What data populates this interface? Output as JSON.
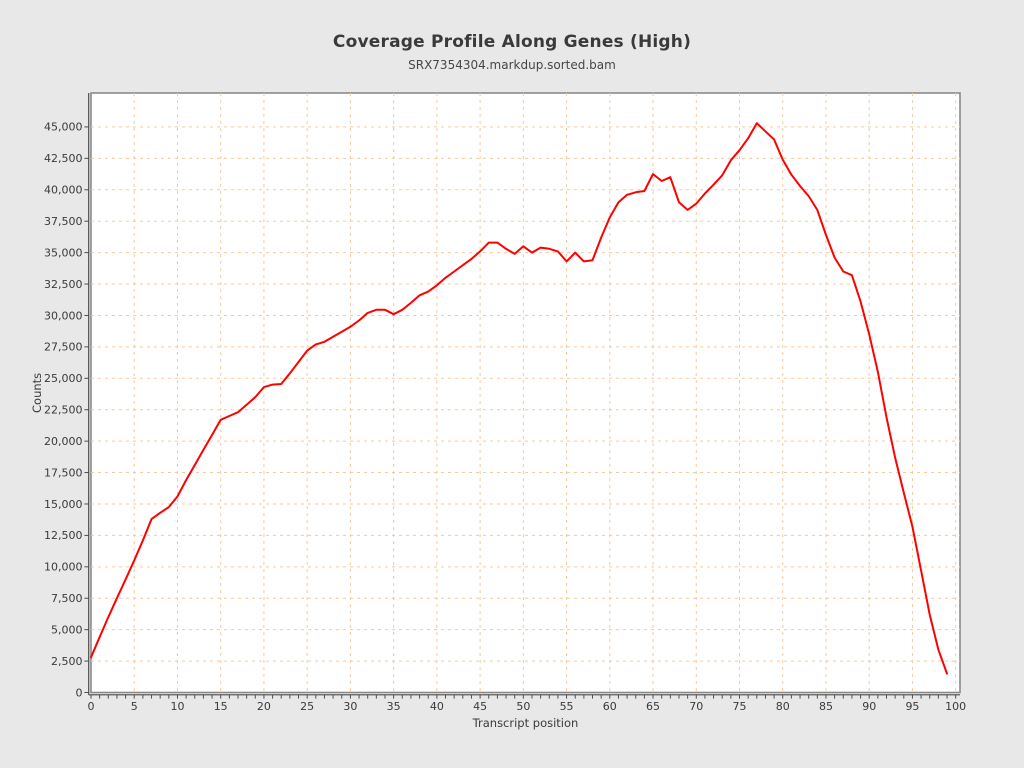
{
  "chart_data": {
    "type": "line",
    "title": "Coverage Profile Along Genes (High)",
    "subtitle": "SRX7354304.markdup.sorted.bam",
    "xlabel": "Transcript position",
    "ylabel": "Counts",
    "x": [
      0,
      1,
      2,
      3,
      4,
      5,
      6,
      7,
      8,
      9,
      10,
      11,
      12,
      13,
      14,
      15,
      16,
      17,
      18,
      19,
      20,
      21,
      22,
      23,
      24,
      25,
      26,
      27,
      28,
      29,
      30,
      31,
      32,
      33,
      34,
      35,
      36,
      37,
      38,
      39,
      40,
      41,
      42,
      43,
      44,
      45,
      46,
      47,
      48,
      49,
      50,
      51,
      52,
      53,
      54,
      55,
      56,
      57,
      58,
      59,
      60,
      61,
      62,
      63,
      64,
      65,
      66,
      67,
      68,
      69,
      70,
      71,
      72,
      73,
      74,
      75,
      76,
      77,
      78,
      79,
      80,
      81,
      82,
      83,
      84,
      85,
      86,
      87,
      88,
      89,
      90,
      91,
      92,
      93,
      94,
      95,
      96,
      97,
      98,
      99
    ],
    "y": [
      2800,
      4400,
      6000,
      7500,
      9000,
      10500,
      12100,
      13800,
      14300,
      14750,
      15600,
      16900,
      18100,
      19300,
      20500,
      21700,
      22000,
      22300,
      22900,
      23500,
      24300,
      24500,
      24550,
      25400,
      26300,
      27200,
      27700,
      27900,
      28300,
      28700,
      29100,
      29600,
      30200,
      30450,
      30450,
      30100,
      30450,
      31000,
      31600,
      31900,
      32400,
      33000,
      33500,
      34000,
      34500,
      35100,
      35800,
      35800,
      35300,
      34900,
      35500,
      35000,
      35400,
      35300,
      35100,
      34300,
      35000,
      34300,
      34400,
      36200,
      37800,
      39000,
      39600,
      39800,
      39900,
      41250,
      40700,
      41000,
      39000,
      38400,
      38900,
      39700,
      40400,
      41150,
      42350,
      43150,
      44100,
      45300,
      44650,
      44000,
      42400,
      41200,
      40300,
      39500,
      38400,
      36400,
      34600,
      33500,
      33200,
      31100,
      28500,
      25500,
      21900,
      18700,
      15900,
      13200,
      9700,
      6200,
      3400,
      1500
    ],
    "x_ticks": [
      0,
      5,
      10,
      15,
      20,
      25,
      30,
      35,
      40,
      45,
      50,
      55,
      60,
      65,
      70,
      75,
      80,
      85,
      90,
      95,
      100
    ],
    "y_ticks": [
      0,
      2500,
      5000,
      7500,
      10000,
      12500,
      15000,
      17500,
      20000,
      22500,
      25000,
      27500,
      30000,
      32500,
      35000,
      37500,
      40000,
      42500,
      45000
    ],
    "xlim": [
      0,
      100.5
    ],
    "ylim": [
      0,
      47700
    ],
    "grid": true,
    "legend": "none",
    "line_color": "#ff0000",
    "grid_color": "#f5c99e",
    "plot_background": "#ffffff",
    "page_background": "#e8e8e8",
    "border_color": "#8a8a8a",
    "axis_color": "#4d4d4d",
    "text_color": "#3a3a3a"
  }
}
